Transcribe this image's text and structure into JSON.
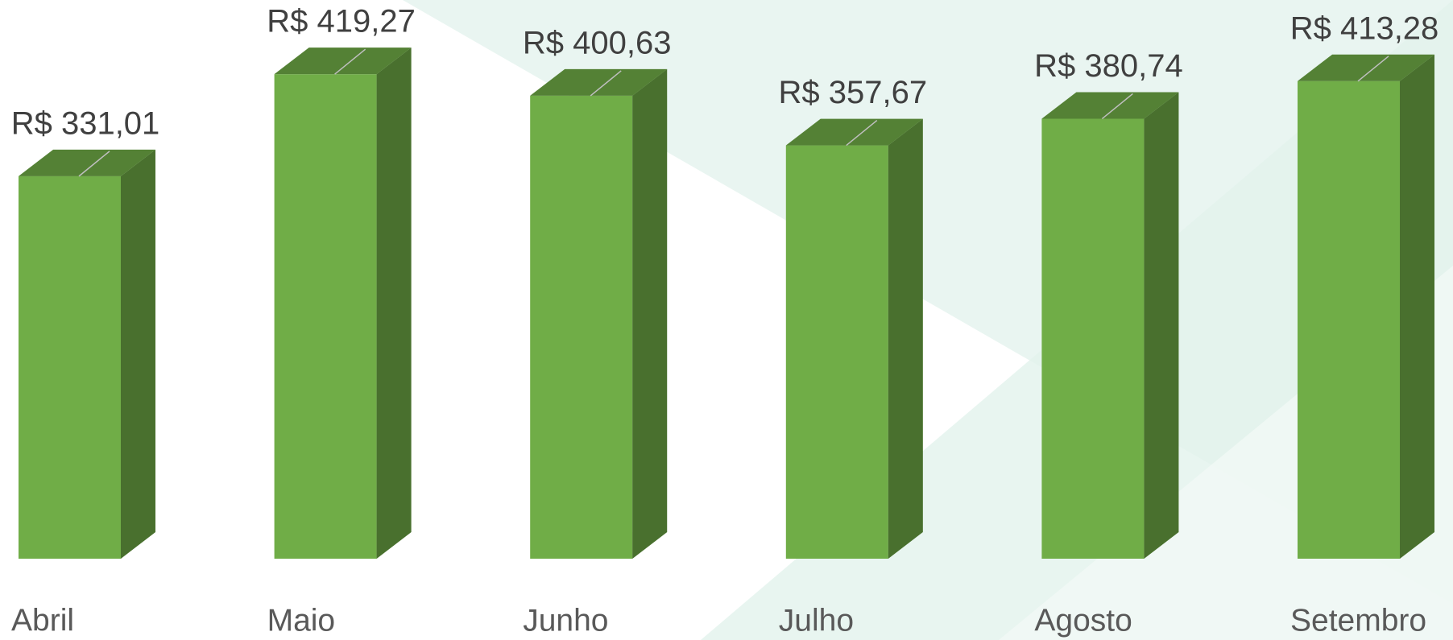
{
  "chart_data": {
    "type": "bar",
    "categories": [
      "Abril",
      "Maio",
      "Junho",
      "Julho",
      "Agosto",
      "Setembro"
    ],
    "values": [
      331.01,
      419.27,
      400.63,
      357.67,
      380.74,
      413.28
    ],
    "value_labels": [
      "R$ 331,01",
      "R$ 419,27",
      "R$ 400,63",
      "R$ 357,67",
      "R$ 380,74",
      "R$ 413,28"
    ],
    "color": "#70ad47",
    "ylim": [
      0,
      480
    ]
  }
}
